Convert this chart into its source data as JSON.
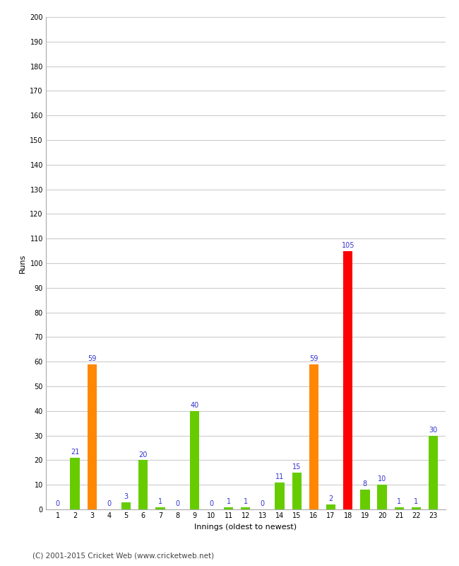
{
  "xlabel": "Innings (oldest to newest)",
  "ylabel": "Runs",
  "innings": [
    1,
    2,
    3,
    4,
    5,
    6,
    7,
    8,
    9,
    10,
    11,
    12,
    13,
    14,
    15,
    16,
    17,
    18,
    19,
    20,
    21,
    22,
    23
  ],
  "values": [
    0,
    21,
    59,
    0,
    3,
    20,
    1,
    0,
    40,
    0,
    1,
    1,
    0,
    11,
    15,
    59,
    2,
    105,
    8,
    10,
    1,
    1,
    30
  ],
  "colors": [
    "#66cc00",
    "#66cc00",
    "#ff8800",
    "#66cc00",
    "#66cc00",
    "#66cc00",
    "#66cc00",
    "#66cc00",
    "#66cc00",
    "#66cc00",
    "#66cc00",
    "#66cc00",
    "#66cc00",
    "#66cc00",
    "#66cc00",
    "#ff8800",
    "#66cc00",
    "#ff0000",
    "#66cc00",
    "#66cc00",
    "#66cc00",
    "#66cc00",
    "#66cc00"
  ],
  "ylim": [
    0,
    200
  ],
  "yticks": [
    0,
    10,
    20,
    30,
    40,
    50,
    60,
    70,
    80,
    90,
    100,
    110,
    120,
    130,
    140,
    150,
    160,
    170,
    180,
    190,
    200
  ],
  "label_color": "#3333cc",
  "background_color": "#ffffff",
  "grid_color": "#cccccc",
  "footer": "(C) 2001-2015 Cricket Web (www.cricketweb.net)",
  "bar_width": 0.55
}
